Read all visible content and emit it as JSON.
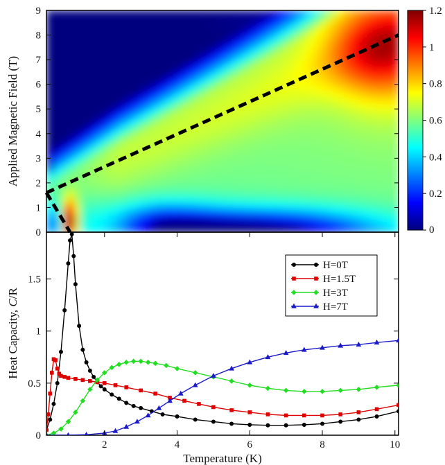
{
  "chart_data": [
    {
      "type": "heatmap",
      "ylabel": "Applied Magnetic Field (T)",
      "xlim": [
        0.4,
        10.1
      ],
      "ylim": [
        0,
        9
      ],
      "yticks": [
        0,
        1,
        2,
        3,
        4,
        5,
        6,
        7,
        8,
        9
      ],
      "colorbar": {
        "range": [
          0,
          1.2
        ],
        "ticks": [
          0,
          0.2,
          0.4,
          0.6,
          0.8,
          1,
          1.2
        ],
        "tick_labels": [
          "0",
          "0.2",
          "0.4",
          "0.6",
          "0.8",
          "1",
          "1.2"
        ],
        "colors": [
          "#00007f",
          "#0000ff",
          "#007fff",
          "#00ffff",
          "#7fff7f",
          "#ffff00",
          "#ff7f00",
          "#ff0000",
          "#7f0000"
        ]
      },
      "dashed_lines": [
        {
          "x": [
            0.4,
            10.1
          ],
          "y": [
            1.6,
            8.0
          ]
        },
        {
          "x": [
            0.4,
            1.05
          ],
          "y": [
            1.6,
            0.0
          ]
        }
      ],
      "grid": false
    },
    {
      "type": "line",
      "xlabel": "Temperature (K)",
      "ylabel": "Heat Capacity, C/R",
      "xlim": [
        0.4,
        10.1
      ],
      "ylim": [
        0,
        1.95
      ],
      "xticks": [
        2,
        4,
        6,
        8,
        10
      ],
      "xtick_labels": [
        "2",
        "4",
        "6",
        "8",
        "10"
      ],
      "yticks": [
        0,
        0.5,
        1,
        1.5
      ],
      "ytick_labels": [
        "0",
        "0.5",
        "1",
        "1.5"
      ],
      "legend_position": "top-right",
      "grid": false,
      "series": [
        {
          "name": "H=0T",
          "color": "#000000",
          "marker": "circle",
          "x": [
            0.4,
            0.5,
            0.6,
            0.7,
            0.8,
            0.9,
            1.0,
            1.05,
            1.1,
            1.15,
            1.2,
            1.3,
            1.4,
            1.5,
            1.6,
            1.7,
            1.8,
            1.9,
            2.0,
            2.2,
            2.4,
            2.6,
            2.8,
            3.0,
            3.3,
            3.6,
            4.0,
            4.5,
            5.0,
            5.5,
            6.0,
            6.5,
            7.0,
            7.5,
            8.0,
            8.5,
            9.0,
            9.5,
            10.1
          ],
          "y": [
            0.05,
            0.15,
            0.3,
            0.5,
            0.8,
            1.2,
            1.65,
            1.87,
            1.93,
            1.72,
            1.45,
            1.05,
            0.82,
            0.7,
            0.62,
            0.56,
            0.51,
            0.47,
            0.44,
            0.39,
            0.35,
            0.31,
            0.28,
            0.26,
            0.23,
            0.2,
            0.18,
            0.15,
            0.13,
            0.11,
            0.1,
            0.095,
            0.095,
            0.1,
            0.11,
            0.13,
            0.15,
            0.18,
            0.23
          ]
        },
        {
          "name": "H=1.5T",
          "color": "#e00000",
          "marker": "square",
          "x": [
            0.4,
            0.45,
            0.5,
            0.55,
            0.6,
            0.65,
            0.7,
            0.75,
            0.8,
            0.9,
            1.0,
            1.2,
            1.4,
            1.6,
            1.8,
            2.0,
            2.3,
            2.6,
            3.0,
            3.4,
            3.8,
            4.2,
            4.6,
            5.0,
            5.5,
            6.0,
            6.5,
            7.0,
            7.5,
            8.0,
            8.5,
            9.0,
            9.5,
            10.1
          ],
          "y": [
            0.05,
            0.2,
            0.4,
            0.6,
            0.73,
            0.72,
            0.64,
            0.59,
            0.57,
            0.56,
            0.55,
            0.54,
            0.53,
            0.52,
            0.51,
            0.5,
            0.48,
            0.46,
            0.43,
            0.4,
            0.36,
            0.33,
            0.3,
            0.27,
            0.24,
            0.22,
            0.2,
            0.19,
            0.19,
            0.19,
            0.2,
            0.22,
            0.25,
            0.29
          ]
        },
        {
          "name": "H=3T",
          "color": "#22dd22",
          "marker": "diamond",
          "x": [
            0.4,
            0.6,
            0.8,
            1.0,
            1.2,
            1.4,
            1.6,
            1.8,
            2.0,
            2.2,
            2.4,
            2.6,
            2.8,
            3.0,
            3.2,
            3.4,
            3.7,
            4.0,
            4.5,
            5.0,
            5.5,
            6.0,
            6.5,
            7.0,
            7.5,
            8.0,
            8.5,
            9.0,
            9.5,
            10.1
          ],
          "y": [
            0.0,
            0.02,
            0.06,
            0.13,
            0.22,
            0.33,
            0.44,
            0.53,
            0.6,
            0.65,
            0.68,
            0.7,
            0.71,
            0.71,
            0.7,
            0.69,
            0.67,
            0.64,
            0.6,
            0.56,
            0.52,
            0.48,
            0.45,
            0.43,
            0.42,
            0.42,
            0.43,
            0.44,
            0.46,
            0.48
          ]
        },
        {
          "name": "H=7T",
          "color": "#1a1ac8",
          "marker": "triangle",
          "x": [
            0.4,
            1.0,
            1.5,
            2.0,
            2.3,
            2.6,
            2.9,
            3.2,
            3.5,
            3.8,
            4.1,
            4.5,
            5.0,
            5.5,
            6.0,
            6.5,
            7.0,
            7.5,
            8.0,
            8.5,
            9.0,
            9.5,
            10.1
          ],
          "y": [
            0.0,
            0.0,
            0.005,
            0.02,
            0.04,
            0.08,
            0.13,
            0.19,
            0.26,
            0.33,
            0.4,
            0.48,
            0.57,
            0.64,
            0.7,
            0.75,
            0.79,
            0.82,
            0.84,
            0.86,
            0.87,
            0.89,
            0.91
          ]
        }
      ]
    }
  ]
}
